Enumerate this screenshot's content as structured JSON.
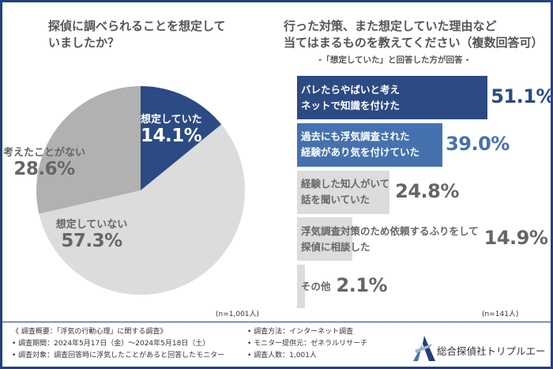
{
  "chart_data": [
    {
      "type": "pie",
      "title": "探偵に調べられることを想定していましたか？",
      "title_lines": [
        "探偵に調べられることを想定して",
        "いましたか？"
      ],
      "slices": [
        {
          "label": "想定していた",
          "value": 14.1,
          "value_label": "14.1%",
          "color": "#2c4a83",
          "text_color": "#ffffff"
        },
        {
          "label": "想定していない",
          "value": 57.3,
          "value_label": "57.3%",
          "color": "#dcdcdc",
          "text_color": "#666666"
        },
        {
          "label": "考えたことがない",
          "value": 28.6,
          "value_label": "28.6%",
          "color": "#b1b1b1",
          "text_color": "#666666"
        }
      ],
      "note": "(n=1,001人)"
    },
    {
      "type": "bar",
      "orientation": "horizontal",
      "title_lines": [
        "行った対策、また想定していた理由など",
        "当てはまるものを教えてください（複数回答可）"
      ],
      "subtitle": "-「想定していた」と回答した方が回答 -",
      "unit": "%",
      "categories": [
        [
          "バレたらやばいと考え",
          "ネットで知識を付けた"
        ],
        [
          "過去にも浮気調査された",
          "経験があり気を付けていた"
        ],
        [
          "経験した知人がいて",
          "話を聞いていた"
        ],
        [
          "浮気調査対策のため依頼するふりをして",
          "探偵に相談した"
        ],
        [
          "その他"
        ]
      ],
      "values": [
        51.1,
        39.0,
        24.8,
        14.9,
        2.1
      ],
      "value_labels": [
        "51.1%",
        "39.0%",
        "24.8%",
        "14.9%",
        "2.1%"
      ],
      "colors": [
        "#2c4a83",
        "#4572ae",
        "#dcdcdc",
        "#dcdcdc",
        "#dcdcdc"
      ],
      "text_colors": [
        "#ffffff",
        "#ffffff",
        "#666666",
        "#666666",
        "#666666"
      ],
      "value_colors": [
        "#2c4a83",
        "#4572ae",
        "#666666",
        "#666666",
        "#666666"
      ],
      "note": "(n=141人)"
    }
  ],
  "footer": {
    "left": [
      "《 調査概要：「浮気の行動心理」に関する調査》",
      "• 調査期間：2024年5月17日（金）～2024年5月18日（土）",
      "• 調査対象：調査回答時に浮気したことがあると回答したモニター"
    ],
    "right": [
      "• 調査方法：インターネット調査",
      "• モニター提供元：ゼネラルリサーチ",
      "• 調査人数：1,001人"
    ],
    "logo_text": "総合探偵社トリプルエー",
    "brand_color": "#24407a"
  }
}
